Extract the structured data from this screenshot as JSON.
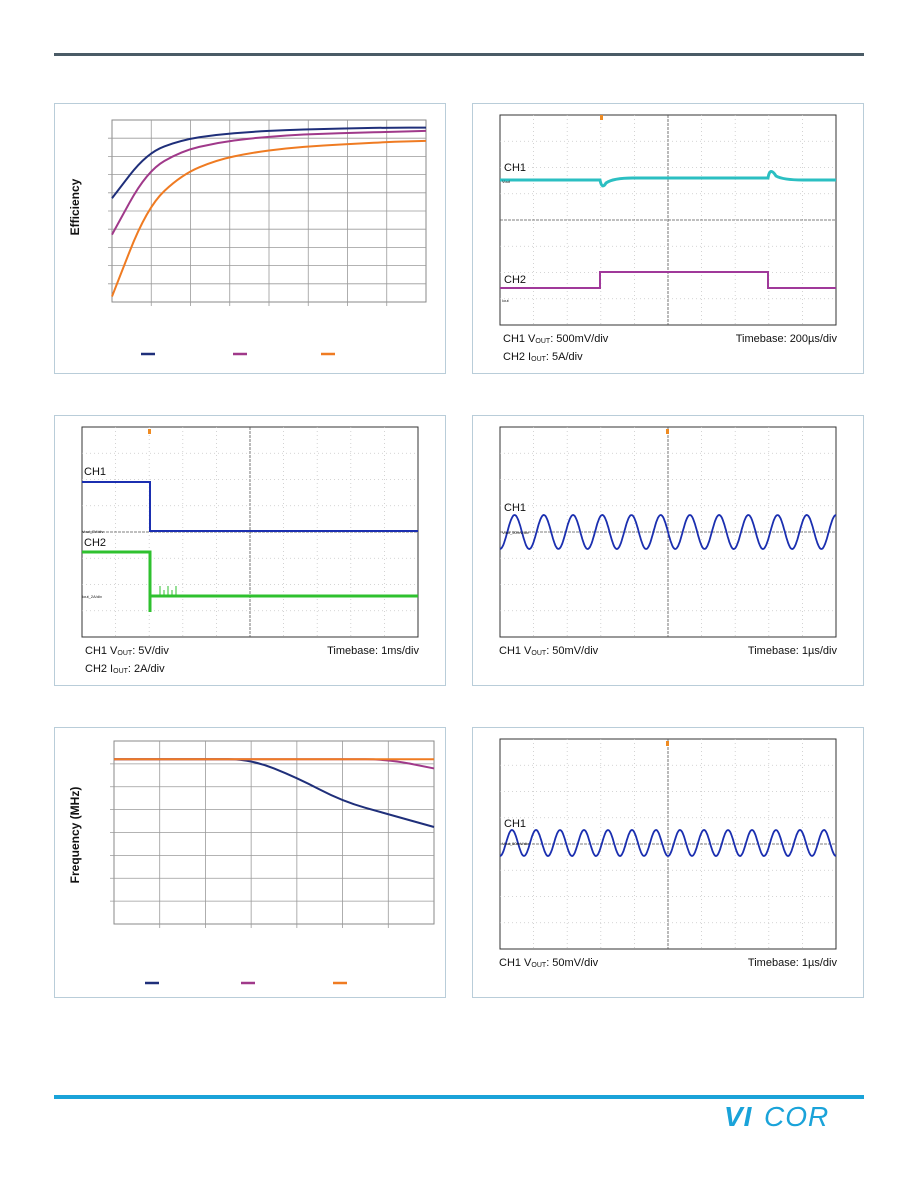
{
  "chart_data": [
    {
      "type": "line",
      "panel": "efficiency",
      "ylabel": "Efficiency",
      "series": [
        {
          "color": "#1f2f7a",
          "values": [
            0.57,
            0.82,
            0.89,
            0.92,
            0.935,
            0.945,
            0.95,
            0.955,
            0.958,
            0.958
          ]
        },
        {
          "color": "#a0398a",
          "values": [
            0.37,
            0.72,
            0.83,
            0.875,
            0.9,
            0.915,
            0.925,
            0.93,
            0.935,
            0.94
          ]
        },
        {
          "color": "#ef7b22",
          "values": [
            0.03,
            0.52,
            0.7,
            0.78,
            0.82,
            0.845,
            0.86,
            0.87,
            0.88,
            0.885
          ]
        }
      ],
      "legend_position": "bottom"
    },
    {
      "type": "line",
      "panel": "load-transient",
      "ch1_label": "CH1",
      "ch1_marker": "Vout",
      "ch2_label": "CH2",
      "ch2_marker": "Iout",
      "caption_left_line1": {
        "pre": "CH1 V",
        "sub": "OUT",
        "post": ": 500mV/div"
      },
      "caption_left_line2": {
        "pre": "CH2 I",
        "sub": "OUT",
        "post": ": 5A/div"
      },
      "caption_right": "Timebase: 200µs/div",
      "trace_colors": {
        "ch1": "#2bbfc2",
        "ch2": "#a0399a",
        "trigger": "#ef8b22"
      }
    },
    {
      "type": "line",
      "panel": "short-circuit",
      "ch1_label": "CH1",
      "ch1_marker": "Vout_5V/div",
      "ch2_label": "CH2",
      "ch2_marker": "Iout_2A/div",
      "caption_left_line1": {
        "pre": "CH1 V",
        "sub": "OUT",
        "post": ": 5V/div"
      },
      "caption_left_line2": {
        "pre": "CH2 I",
        "sub": "OUT",
        "post": ": 2A/div"
      },
      "caption_right": "Timebase: 1ms/div",
      "trace_colors": {
        "ch1": "#1b2fb0",
        "ch2": "#2fc12f",
        "trigger": "#ef8b22"
      }
    },
    {
      "type": "line",
      "panel": "ripple-1",
      "ch1_label": "CH1",
      "ch1_marker": "Vout_50mV/div",
      "caption_left_line1": {
        "pre": "CH1 V",
        "sub": "OUT",
        "post": ": 50mV/div"
      },
      "caption_right": "Timebase: 1µs/div",
      "trace_colors": {
        "ch1": "#1b2fb0",
        "trigger": "#ef8b22"
      },
      "cycles": 11.5
    },
    {
      "type": "line",
      "panel": "frequency",
      "ylabel": "Frequency (MHz)",
      "series": [
        {
          "color": "#1f2f7a",
          "values": [
            0.9,
            0.9,
            0.9,
            0.9,
            0.8,
            0.67,
            0.6,
            0.53
          ]
        },
        {
          "color": "#a0398a",
          "values": [
            0.9,
            0.9,
            0.9,
            0.9,
            0.9,
            0.9,
            0.9,
            0.85
          ]
        },
        {
          "color": "#ef7b22",
          "values": [
            0.9,
            0.9,
            0.9,
            0.9,
            0.9,
            0.9,
            0.9,
            0.9
          ]
        }
      ],
      "legend_position": "bottom"
    },
    {
      "type": "line",
      "panel": "ripple-2",
      "ch1_label": "CH1",
      "ch1_marker": "Vout_50mV/div",
      "caption_left_line1": {
        "pre": "CH1 V",
        "sub": "OUT",
        "post": ": 50mV/div"
      },
      "caption_right": "Timebase: 1µs/div",
      "trace_colors": {
        "ch1": "#1b2fb0",
        "trigger": "#ef8b22"
      },
      "cycles": 14
    }
  ],
  "brand": {
    "name": "VICOR",
    "color": "#1aa3d9"
  }
}
